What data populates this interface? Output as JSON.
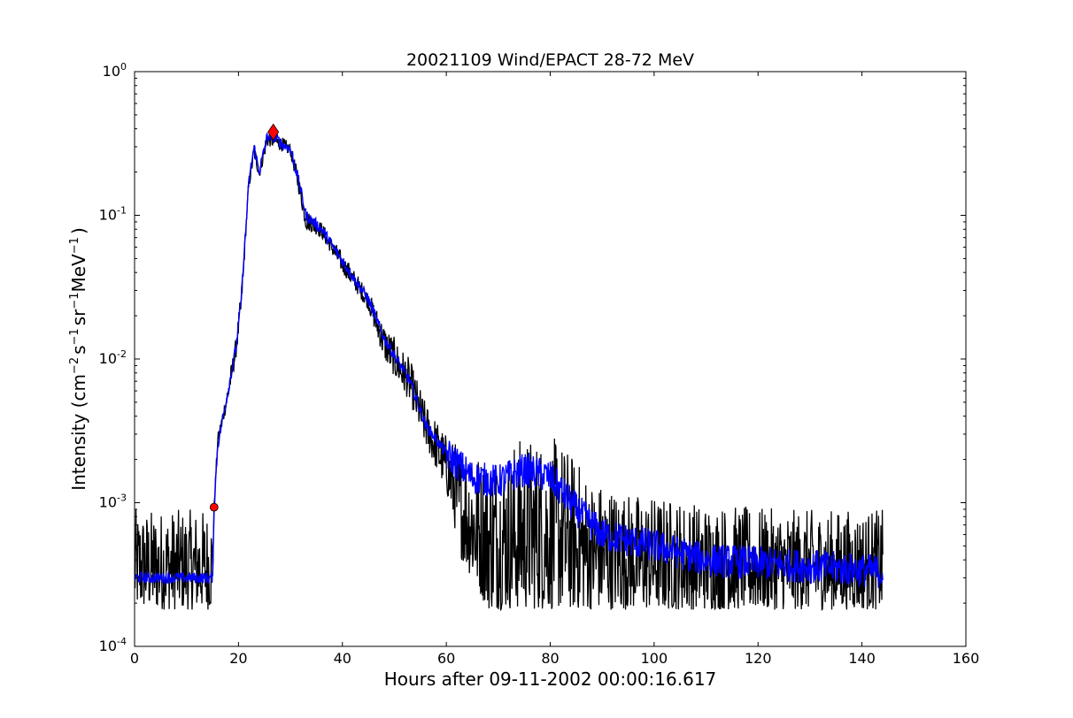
{
  "chart_data": {
    "type": "line",
    "title": "20021109 Wind/EPACT 28-72 MeV",
    "xlabel": "Hours after 09-11-2002 00:00:16.617",
    "ylabel": {
      "prefix": "Intensity (cm",
      "exp1": "−2",
      "s": "s",
      "exp2": "−1",
      "sr": "sr",
      "exp3": "−1",
      "mev": "MeV",
      "exp4": "−1",
      "suffix": ")"
    },
    "xlim": [
      0,
      160
    ],
    "ylim": [
      0.0001,
      1
    ],
    "yscale": "log",
    "grid": false,
    "x_ticks": [
      {
        "value": 0,
        "label": "0"
      },
      {
        "value": 20,
        "label": "20"
      },
      {
        "value": 40,
        "label": "40"
      },
      {
        "value": 60,
        "label": "60"
      },
      {
        "value": 80,
        "label": "80"
      },
      {
        "value": 100,
        "label": "100"
      },
      {
        "value": 120,
        "label": "120"
      },
      {
        "value": 140,
        "label": "140"
      },
      {
        "value": 160,
        "label": "160"
      }
    ],
    "y_ticks": [
      {
        "value": 0.0001,
        "base": "10",
        "exp": "-4"
      },
      {
        "value": 0.001,
        "base": "10",
        "exp": "-3"
      },
      {
        "value": 0.01,
        "base": "10",
        "exp": "-2"
      },
      {
        "value": 0.1,
        "base": "10",
        "exp": "-1"
      },
      {
        "value": 1,
        "base": "10",
        "exp": "0"
      }
    ],
    "series": [
      {
        "role": "raw",
        "color": "#000000",
        "envelope": [
          {
            "x": 0,
            "low": 0.00018,
            "high": 0.0009
          },
          {
            "x": 15,
            "low": 0.00018,
            "high": 0.0009
          },
          {
            "x": 15.3,
            "low": 0.0009,
            "high": 0.001
          },
          {
            "x": 16,
            "low": 0.0025,
            "high": 0.003
          },
          {
            "x": 18,
            "low": 0.005,
            "high": 0.007
          },
          {
            "x": 19.5,
            "low": 0.01,
            "high": 0.014
          },
          {
            "x": 20.5,
            "low": 0.02,
            "high": 0.03
          },
          {
            "x": 21.5,
            "low": 0.08,
            "high": 0.1
          },
          {
            "x": 22,
            "low": 0.15,
            "high": 0.19
          },
          {
            "x": 23,
            "low": 0.25,
            "high": 0.32
          },
          {
            "x": 24,
            "low": 0.18,
            "high": 0.22
          },
          {
            "x": 25.5,
            "low": 0.3,
            "high": 0.4
          },
          {
            "x": 27,
            "low": 0.3,
            "high": 0.38
          },
          {
            "x": 30,
            "low": 0.26,
            "high": 0.32
          },
          {
            "x": 31.5,
            "low": 0.15,
            "high": 0.2
          },
          {
            "x": 33,
            "low": 0.08,
            "high": 0.11
          },
          {
            "x": 36,
            "low": 0.07,
            "high": 0.09
          },
          {
            "x": 40,
            "low": 0.04,
            "high": 0.055
          },
          {
            "x": 45,
            "low": 0.022,
            "high": 0.03
          },
          {
            "x": 48,
            "low": 0.01,
            "high": 0.018
          },
          {
            "x": 53,
            "low": 0.005,
            "high": 0.01
          },
          {
            "x": 56,
            "low": 0.0025,
            "high": 0.005
          },
          {
            "x": 60,
            "low": 0.0012,
            "high": 0.003
          },
          {
            "x": 63,
            "low": 0.0004,
            "high": 0.0025
          },
          {
            "x": 68,
            "low": 0.00018,
            "high": 0.0022
          },
          {
            "x": 75,
            "low": 0.00018,
            "high": 0.003
          },
          {
            "x": 82,
            "low": 0.00018,
            "high": 0.0028
          },
          {
            "x": 88,
            "low": 0.00018,
            "high": 0.0015
          },
          {
            "x": 95,
            "low": 0.00018,
            "high": 0.0012
          },
          {
            "x": 110,
            "low": 0.00018,
            "high": 0.001
          },
          {
            "x": 125,
            "low": 0.00018,
            "high": 0.0009
          },
          {
            "x": 144,
            "low": 0.00018,
            "high": 0.0009
          }
        ]
      },
      {
        "role": "smoothed",
        "color": "#0000ff",
        "points": [
          [
            0,
            0.0003
          ],
          [
            15,
            0.0003
          ],
          [
            15.3,
            0.0009
          ],
          [
            16,
            0.0025
          ],
          [
            18,
            0.006
          ],
          [
            19.5,
            0.012
          ],
          [
            20.5,
            0.025
          ],
          [
            21.5,
            0.09
          ],
          [
            22,
            0.17
          ],
          [
            23,
            0.3
          ],
          [
            24,
            0.2
          ],
          [
            25.5,
            0.35
          ],
          [
            27,
            0.35
          ],
          [
            28.5,
            0.31
          ],
          [
            30,
            0.29
          ],
          [
            31.5,
            0.18
          ],
          [
            33,
            0.1
          ],
          [
            36,
            0.08
          ],
          [
            40,
            0.048
          ],
          [
            45,
            0.026
          ],
          [
            48,
            0.014
          ],
          [
            53,
            0.007
          ],
          [
            56,
            0.0035
          ],
          [
            60,
            0.0022
          ],
          [
            65,
            0.0015
          ],
          [
            70,
            0.0014
          ],
          [
            75,
            0.0017
          ],
          [
            80,
            0.0015
          ],
          [
            85,
            0.0009
          ],
          [
            90,
            0.0006
          ],
          [
            100,
            0.0005
          ],
          [
            110,
            0.0004
          ],
          [
            120,
            0.00038
          ],
          [
            130,
            0.00036
          ],
          [
            140,
            0.00034
          ],
          [
            144,
            0.00033
          ]
        ]
      }
    ],
    "markers": [
      {
        "name": "onset",
        "x": 15.3,
        "y": 0.00093,
        "shape": "circle",
        "color": "#ff0000"
      },
      {
        "name": "peak",
        "x": 26.7,
        "y": 0.38,
        "shape": "diamond",
        "color": "#ff0000"
      }
    ]
  }
}
